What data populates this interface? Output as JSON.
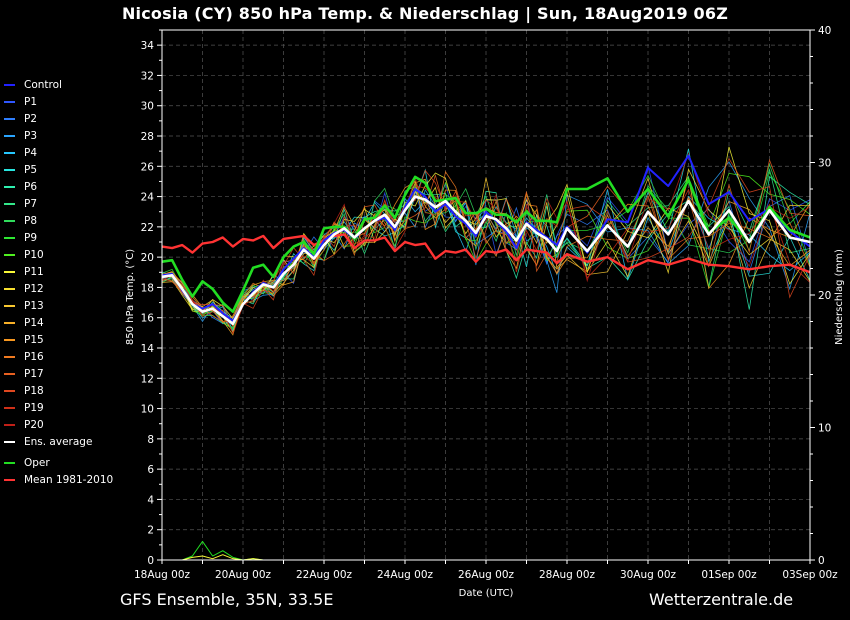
{
  "title": "Nicosia  (CY)  850 hPa Temp. & Niederschlag | Sun, 18Aug2019 06Z",
  "footer_left": "GFS Ensemble, 35N, 33.5E",
  "footer_right": "Wetterzentrale.de",
  "legend": [
    {
      "label": "Control",
      "color": "#2222ff"
    },
    {
      "label": "P1",
      "color": "#2f57ff"
    },
    {
      "label": "P2",
      "color": "#2f7fff"
    },
    {
      "label": "P3",
      "color": "#2aa5ff"
    },
    {
      "label": "P4",
      "color": "#26c8ff"
    },
    {
      "label": "P5",
      "color": "#28e6e0"
    },
    {
      "label": "P6",
      "color": "#2ef0b0"
    },
    {
      "label": "P7",
      "color": "#33e88a"
    },
    {
      "label": "P8",
      "color": "#30dc5c"
    },
    {
      "label": "P9",
      "color": "#2ee832"
    },
    {
      "label": "P10",
      "color": "#50f020"
    },
    {
      "label": "P11",
      "color": "#f8f838"
    },
    {
      "label": "P12",
      "color": "#f8e030"
    },
    {
      "label": "P13",
      "color": "#f8c830"
    },
    {
      "label": "P14",
      "color": "#f8b028"
    },
    {
      "label": "P15",
      "color": "#f89820"
    },
    {
      "label": "P16",
      "color": "#f07a20"
    },
    {
      "label": "P17",
      "color": "#e86020"
    },
    {
      "label": "P18",
      "color": "#e04820"
    },
    {
      "label": "P19",
      "color": "#d03018"
    },
    {
      "label": "P20",
      "color": "#c02018"
    },
    {
      "label": "Ens. average",
      "color": "#ffffff"
    },
    {
      "label": "Oper",
      "color": "#22dd22"
    },
    {
      "label": "Mean 1981-2010",
      "color": "#ff3333"
    }
  ],
  "chart_data": {
    "type": "line",
    "xlabel": "Date (UTC)",
    "ylabel": "850 hPa Temp. (°C)",
    "y2label": "Niederschlag (mm)",
    "x_range": [
      "18Aug 00z",
      "03Sep 00z"
    ],
    "x_ticks": [
      "18Aug 00z",
      "20Aug 00z",
      "22Aug 00z",
      "24Aug 00z",
      "26Aug 00z",
      "28Aug 00z",
      "30Aug 00z",
      "01Sep 00z",
      "03Sep 00z"
    ],
    "ylim": [
      0,
      35
    ],
    "y_ticks": [
      0,
      2,
      4,
      6,
      8,
      10,
      12,
      14,
      16,
      18,
      20,
      22,
      24,
      26,
      28,
      30,
      32,
      34
    ],
    "y2lim": [
      0,
      40
    ],
    "y2_ticks": [
      0,
      10,
      20,
      30,
      40
    ],
    "grid": true,
    "legend_position": "left",
    "x_hours": [
      0,
      6,
      12,
      18,
      24,
      30,
      36,
      42,
      48,
      54,
      60,
      66,
      72,
      78,
      84,
      90,
      96,
      102,
      108,
      114,
      120,
      126,
      132,
      138,
      144,
      150,
      156,
      162,
      168,
      174,
      180,
      186,
      192,
      198,
      204,
      210,
      216,
      222,
      228,
      234,
      240,
      252,
      264,
      276,
      288,
      300,
      312,
      324,
      336,
      348,
      360,
      372,
      384
    ],
    "series": [
      {
        "name": "Ens. average",
        "values": [
          18.7,
          18.8,
          17.9,
          16.9,
          16.4,
          16.6,
          16.1,
          15.6,
          16.9,
          17.6,
          18.2,
          18.0,
          18.9,
          19.5,
          20.5,
          19.9,
          20.8,
          21.5,
          21.9,
          21.3,
          21.9,
          22.4,
          22.8,
          22.0,
          23.1,
          24.0,
          23.8,
          23.3,
          23.7,
          23.0,
          22.4,
          21.6,
          22.7,
          22.5,
          21.9,
          21.1,
          22.2,
          21.6,
          21.2,
          20.4,
          21.9,
          20.4,
          22.1,
          20.7,
          23.0,
          21.5,
          23.7,
          21.5,
          23.1,
          21.0,
          23.1,
          21.3,
          21.0
        ]
      },
      {
        "name": "Oper",
        "values": [
          19.7,
          19.8,
          18.5,
          17.4,
          18.4,
          17.9,
          17.0,
          16.4,
          17.8,
          19.3,
          19.5,
          18.7,
          20.0,
          20.7,
          21.0,
          20.2,
          21.9,
          22.0,
          22.0,
          21.2,
          22.5,
          22.6,
          23.4,
          22.6,
          24.1,
          25.3,
          24.9,
          23.7,
          23.8,
          23.9,
          22.9,
          22.9,
          23.2,
          22.8,
          22.8,
          22.3,
          23.0,
          22.4,
          22.4,
          22.3,
          24.5,
          24.5,
          25.2,
          23.0,
          24.5,
          22.7,
          25.1,
          21.6,
          22.6,
          21.0,
          23.3,
          21.8,
          21.3
        ]
      },
      {
        "name": "Control",
        "values": [
          18.8,
          18.9,
          17.8,
          16.9,
          16.6,
          16.9,
          16.3,
          15.8,
          16.9,
          17.7,
          18.3,
          18.0,
          19.2,
          19.9,
          20.6,
          20.0,
          21.1,
          21.6,
          21.8,
          21.2,
          21.9,
          22.4,
          22.6,
          21.8,
          23.3,
          24.5,
          24.0,
          23.0,
          23.5,
          22.7,
          22.2,
          21.4,
          23.0,
          22.4,
          21.7,
          20.6,
          22.3,
          21.8,
          21.3,
          20.8,
          22.0,
          20.3,
          22.5,
          22.3,
          25.9,
          24.7,
          26.7,
          23.5,
          24.3,
          22.4,
          23.2,
          21.7,
          20.7
        ]
      },
      {
        "name": "Mean 1981-2010",
        "values": [
          20.7,
          20.6,
          20.8,
          20.3,
          20.9,
          21.0,
          21.3,
          20.7,
          21.2,
          21.1,
          21.4,
          20.6,
          21.2,
          21.3,
          21.4,
          20.8,
          21.1,
          21.4,
          21.5,
          20.6,
          21.1,
          21.1,
          21.3,
          20.4,
          21.0,
          20.8,
          20.9,
          19.9,
          20.4,
          20.3,
          20.5,
          19.7,
          20.4,
          20.3,
          20.5,
          19.8,
          20.5,
          20.4,
          20.3,
          19.6,
          20.2,
          19.7,
          20.0,
          19.2,
          19.8,
          19.5,
          19.9,
          19.5,
          19.4,
          19.2,
          19.4,
          19.5,
          19.0
        ]
      },
      {
        "name": "Precipitation (Ens. average)",
        "axis": "right",
        "values": [
          0.0,
          0.0,
          0.0,
          0.2,
          0.3,
          0.1,
          0.4,
          0.1,
          0.0,
          0.1,
          0.0,
          0.0,
          0.0,
          0.0,
          0.0,
          0.0,
          0.0,
          0.0,
          0.0,
          0.0,
          0.0,
          0.0,
          0.0,
          0.0,
          0.0,
          0.0,
          0.0,
          0.0,
          0.0,
          0.0,
          0.0,
          0.0,
          0.0,
          0.0,
          0.0,
          0.0,
          0.0,
          0.0,
          0.0,
          0.0,
          0.0,
          0.0,
          0.0,
          0.0,
          0.0,
          0.0,
          0.0,
          0.0,
          0.0,
          0.0,
          0.0,
          0.0,
          0.0
        ]
      },
      {
        "name": "Precipitation (Oper)",
        "axis": "right",
        "values": [
          0.0,
          0.0,
          0.0,
          0.3,
          1.4,
          0.3,
          0.7,
          0.2,
          0.0,
          0.1,
          0.0,
          0.0,
          0.0,
          0.0,
          0.0,
          0.0,
          0.0,
          0.0,
          0.0,
          0.0,
          0.0,
          0.0,
          0.0,
          0.0,
          0.0,
          0.0,
          0.0,
          0.0,
          0.0,
          0.0,
          0.0,
          0.0,
          0.0,
          0.0,
          0.0,
          0.0,
          0.0,
          0.0,
          0.0,
          0.0,
          0.0,
          0.0,
          0.0,
          0.0,
          0.0,
          0.0,
          0.0,
          0.0,
          0.0,
          0.0,
          0.0,
          0.0,
          0.0
        ]
      }
    ]
  }
}
